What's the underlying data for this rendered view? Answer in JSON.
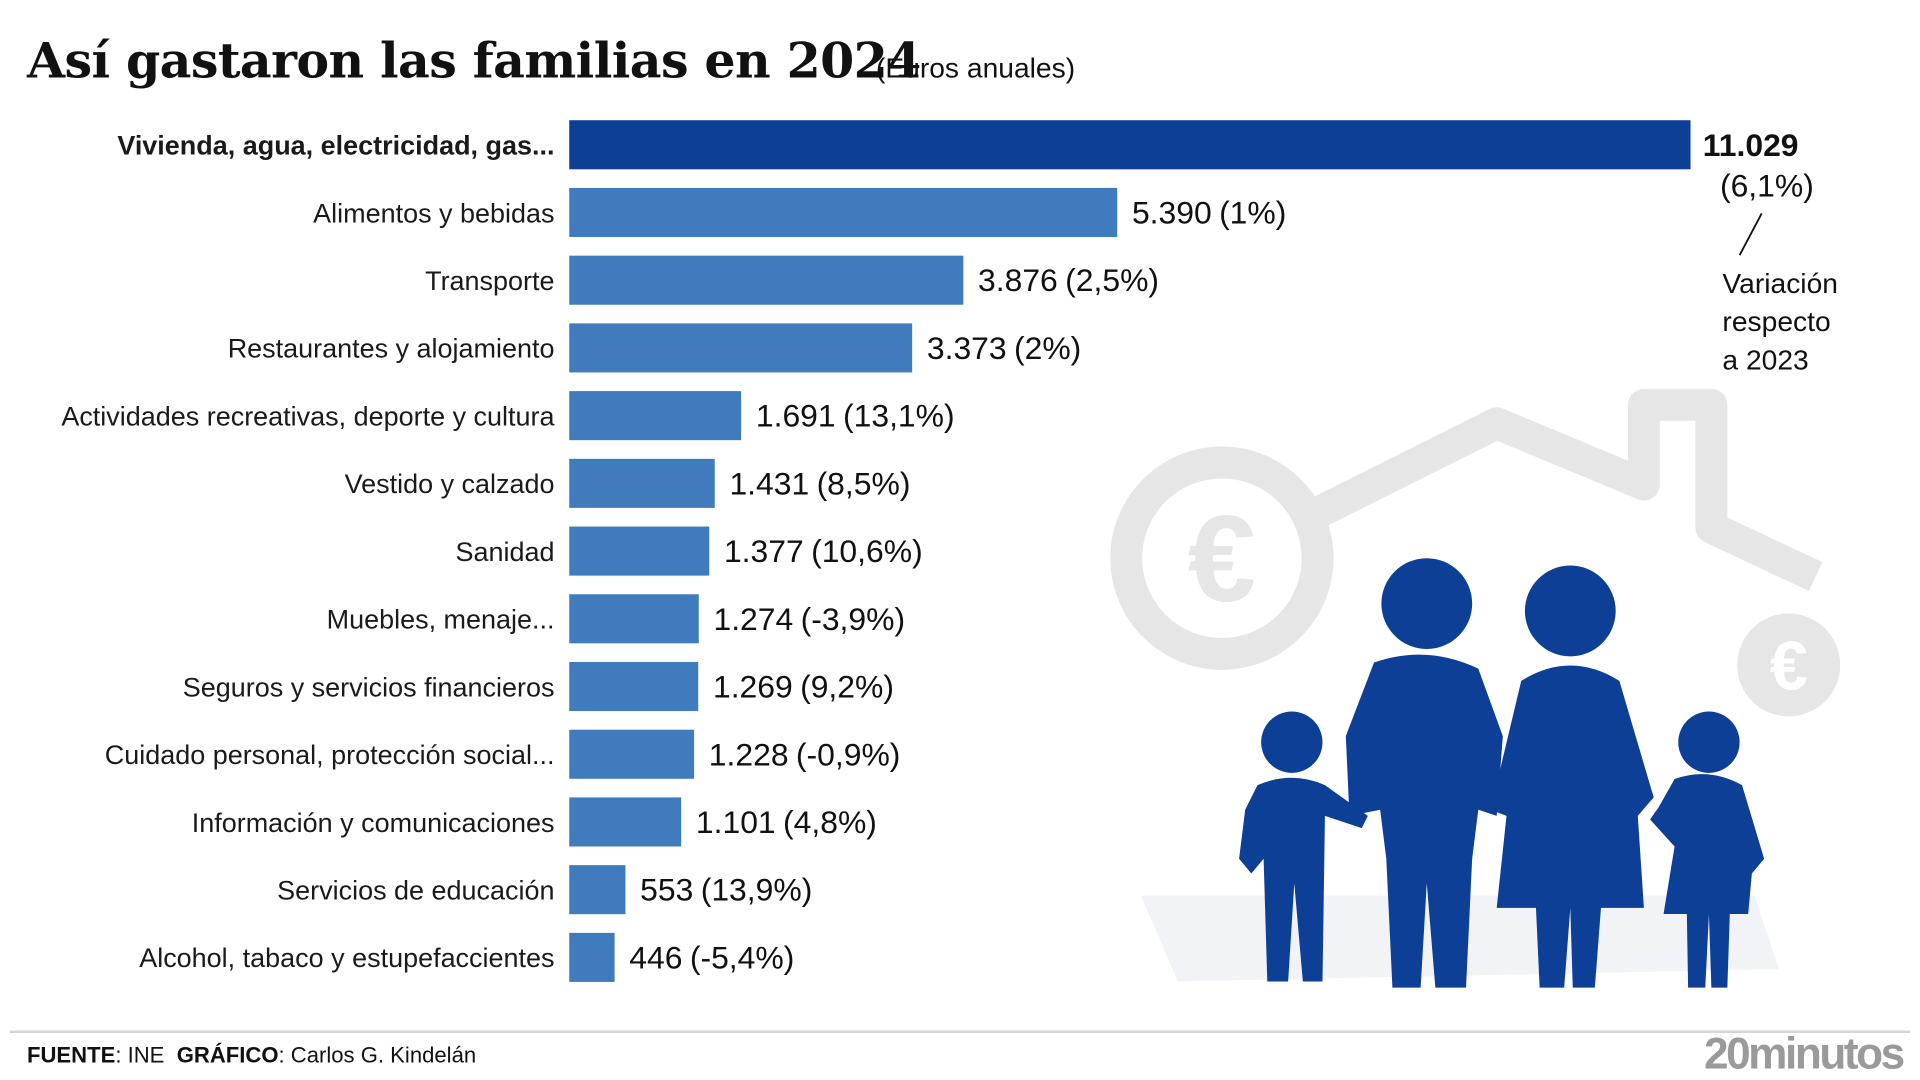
{
  "chart_data": {
    "type": "bar",
    "orientation": "horizontal",
    "title": "Así gastaron las familias en 2024",
    "subtitle": "(Euros anuales)",
    "categories": [
      "Vivienda, agua, electricidad, gas...",
      "Alimentos y bebidas",
      "Transporte",
      "Restaurantes y alojamiento",
      "Actividades recreativas, deporte y cultura",
      "Vestido y calzado",
      "Sanidad",
      "Muebles, menaje...",
      "Seguros y servicios financieros",
      "Cuidado personal, protección social...",
      "Información y comunicaciones",
      "Servicios de educación",
      "Alcohol, tabaco y estupefaccientes"
    ],
    "values": [
      11029,
      5390,
      3876,
      3373,
      1691,
      1431,
      1377,
      1274,
      1269,
      1228,
      1101,
      553,
      446
    ],
    "value_labels": [
      "11.029",
      "5.390",
      "3.876",
      "3.373",
      "1.691",
      "1.431",
      "1.377",
      "1.274",
      "1.269",
      "1.228",
      "1.101",
      "553",
      "446"
    ],
    "variation_labels": [
      "(6,1%)",
      "(1%)",
      "(2,5%)",
      "(2%)",
      "(13,1%)",
      "(8,5%)",
      "(10,6%)",
      "(-3,9%)",
      "(9,2%)",
      "(-0,9%)",
      "(4,8%)",
      "(13,9%)",
      "(-5,4%)"
    ],
    "variation": [
      6.1,
      1,
      2.5,
      2,
      13.1,
      8.5,
      10.6,
      -3.9,
      9.2,
      -0.9,
      4.8,
      13.9,
      -5.4
    ],
    "annotation": "Variación respecto a 2023",
    "colors": {
      "highlight_bar": "#0d3f96",
      "bar": "#3f7bbd",
      "positive": "#6aab3a",
      "negative": "#e0262b",
      "illustration": "#0d3f96"
    }
  },
  "footer": {
    "source_label": "FUENTE",
    "source": ": INE",
    "credit_label": "GRÁFICO",
    "credit": ": Carlos G. Kindelán",
    "logo": "20minutos"
  },
  "note_lines": [
    "Variación",
    "respecto",
    "a 2023"
  ]
}
